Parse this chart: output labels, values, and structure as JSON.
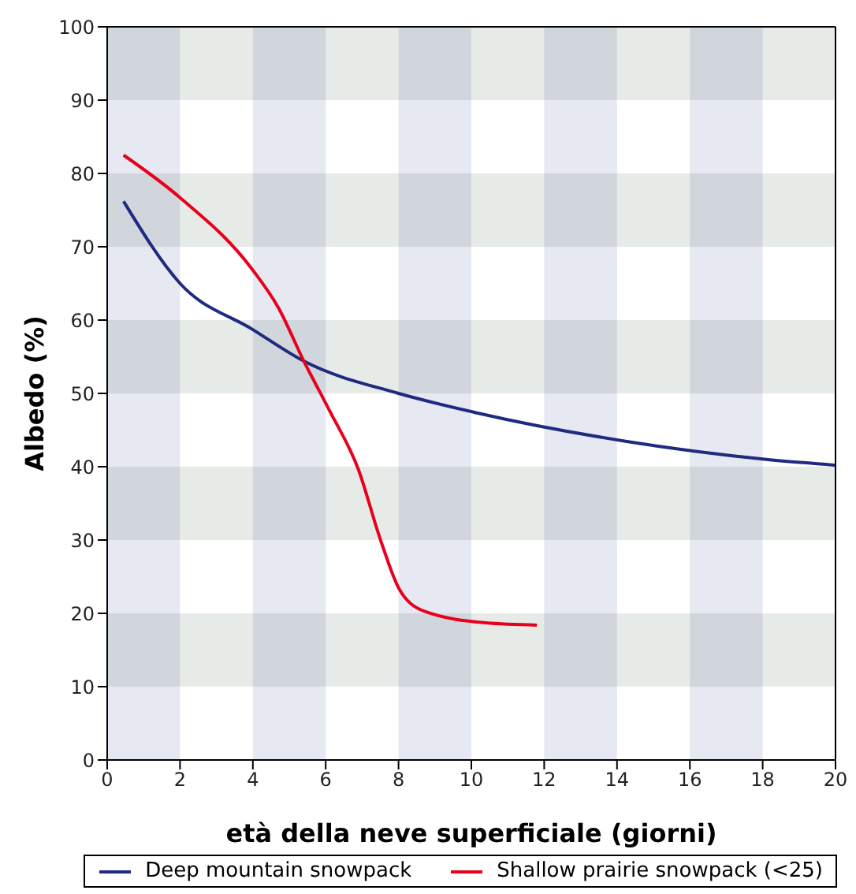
{
  "chart_data": {
    "type": "line",
    "xlabel": "età della neve superficiale (giorni)",
    "ylabel": "Albedo (%)",
    "xlim": [
      0,
      20
    ],
    "xticks": [
      0,
      2,
      4,
      6,
      8,
      10,
      12,
      14,
      16,
      18,
      20
    ],
    "ylim": [
      0,
      100
    ],
    "yticks": [
      0,
      10,
      20,
      30,
      40,
      50,
      60,
      70,
      80,
      90,
      100
    ],
    "legend": "bottom",
    "marker": "none",
    "line_style": "solid",
    "bands": [
      {
        "axis": "x",
        "from": 0,
        "to": 2,
        "color": "#e6e9f1"
      },
      {
        "axis": "x",
        "from": 4,
        "to": 6,
        "color": "#e6e9f1"
      },
      {
        "axis": "x",
        "from": 8,
        "to": 10,
        "color": "#e6e9f1"
      },
      {
        "axis": "x",
        "from": 12,
        "to": 14,
        "color": "#e6e9f1"
      },
      {
        "axis": "x",
        "from": 16,
        "to": 18,
        "color": "#e6e9f1"
      },
      {
        "axis": "y",
        "from": 10,
        "to": 20,
        "color": "#e7ebe8"
      },
      {
        "axis": "y",
        "from": 30,
        "to": 40,
        "color": "#e7ebe8"
      },
      {
        "axis": "y",
        "from": 50,
        "to": 60,
        "color": "#e7ebe8"
      },
      {
        "axis": "y",
        "from": 70,
        "to": 80,
        "color": "#e7ebe8"
      },
      {
        "axis": "y",
        "from": 90,
        "to": 100,
        "color": "#e7ebe8"
      }
    ],
    "series": [
      {
        "name": "Deep mountain snowpack",
        "color": "#1f2a80",
        "x": [
          0.45,
          2,
          4,
          5.4,
          8,
          10.1,
          14.2,
          18.1,
          20
        ],
        "values": [
          76.2,
          65,
          58.7,
          54.4,
          50,
          47.4,
          43.5,
          41,
          40.2
        ]
      },
      {
        "name": "Shallow prairie snowpack (<25)",
        "color": "#e8001c",
        "x": [
          0.45,
          2,
          4,
          4.7,
          5.4,
          6.1,
          6.9,
          7.5,
          8,
          8.7,
          10.4,
          11.8
        ],
        "values": [
          82.5,
          76.7,
          66.8,
          61.7,
          54.4,
          47.7,
          39.6,
          30.1,
          23.5,
          20.3,
          18.7,
          18.4
        ]
      }
    ]
  }
}
